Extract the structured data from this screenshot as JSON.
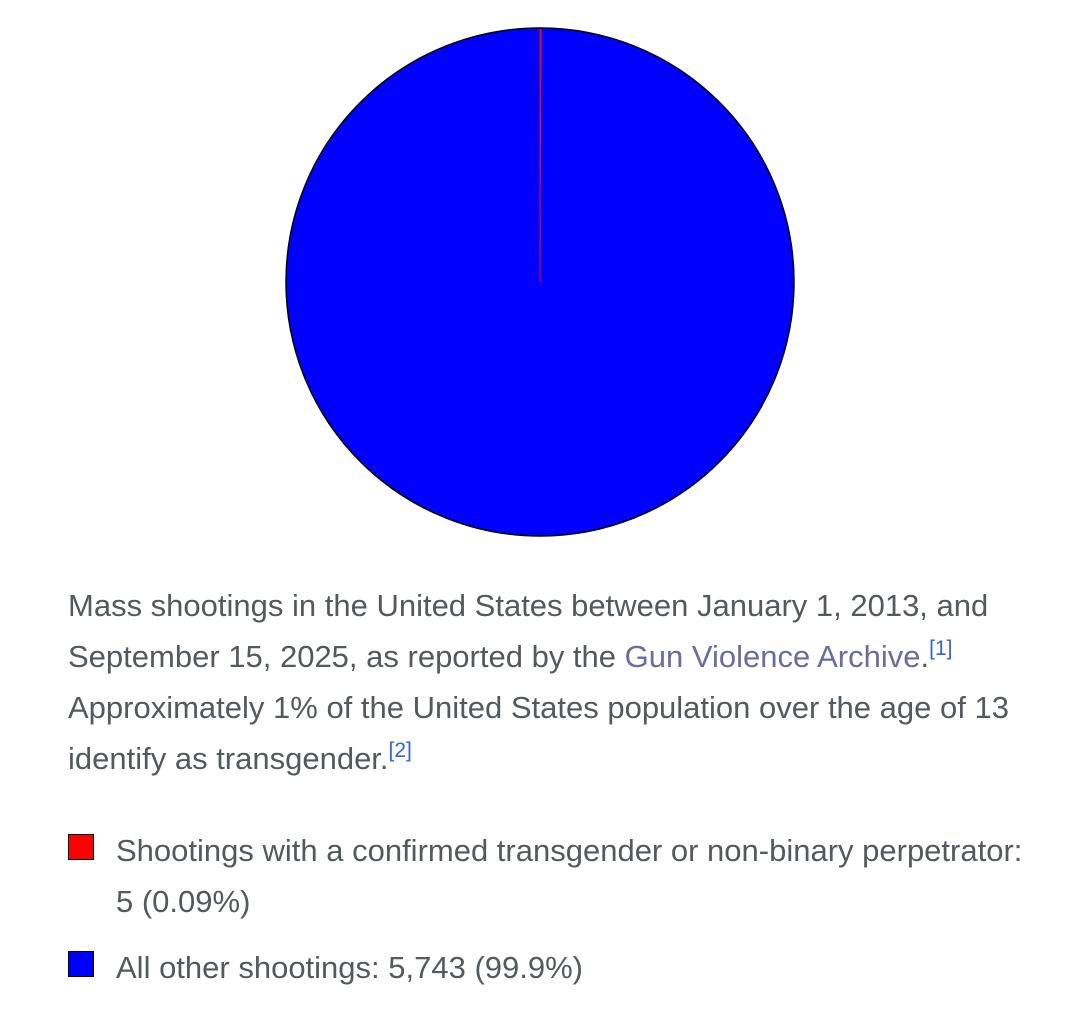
{
  "caption": {
    "text_before_link": "Mass shootings in the United States between January 1, 2013, and September 15, 2025, as reported by the ",
    "link_text": "Gun Violence Archive",
    "text_after_link": ".",
    "ref1": "[1]",
    "text_middle": " Approximately 1% of the United States population over the age of 13 identify as transgender.",
    "ref2": "[2]"
  },
  "chart_data": {
    "type": "pie",
    "slices": [
      {
        "label": "Shootings with a confirmed transgender or non-binary perpetrator: 5 (0.09%)",
        "value": 5,
        "color": "#ff0000"
      },
      {
        "label": "All other shootings: 5,743 (99.9%)",
        "value": 5743,
        "color": "#0000ff"
      }
    ],
    "legend_position": "bottom"
  }
}
